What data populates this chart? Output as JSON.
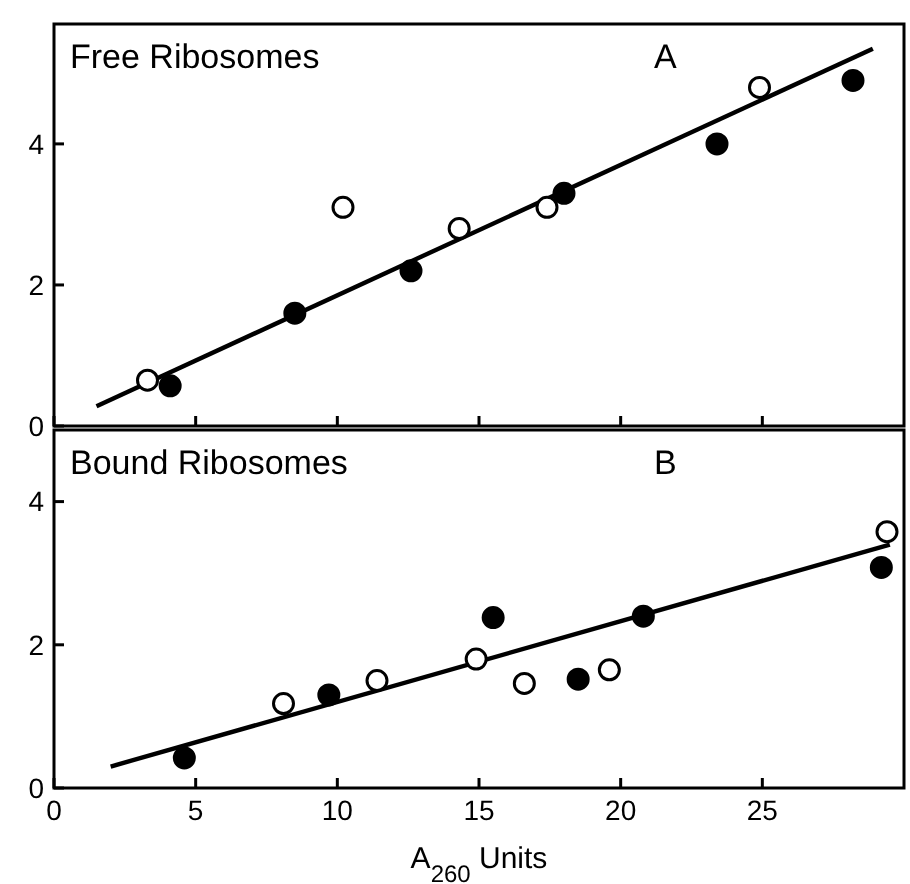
{
  "chart_data": [
    {
      "type": "scatter",
      "title": "Free Ribosomes",
      "annotations": [
        "A"
      ],
      "xlim": [
        0,
        30
      ],
      "xticks": [
        0,
        5,
        10,
        15,
        20,
        25
      ],
      "ylim": [
        0,
        5.7
      ],
      "yticks": [
        0,
        2,
        4
      ],
      "tick_labels": "y",
      "grid": false,
      "series": [
        {
          "color": "#000000",
          "marker": "circle",
          "x": [
            4.1,
            8.5,
            12.6,
            18.0,
            23.4,
            28.2
          ],
          "values": [
            0.57,
            1.6,
            2.2,
            3.3,
            4.0,
            4.9
          ]
        },
        {
          "color": "#ffffff",
          "marker": "circle",
          "x": [
            3.3,
            10.2,
            14.3,
            17.4,
            24.9
          ],
          "values": [
            0.65,
            3.1,
            2.8,
            3.1,
            4.8
          ]
        },
        {
          "type": "line",
          "marker": "none",
          "color": "#000000",
          "x": [
            1.5,
            28.9
          ],
          "values": [
            0.28,
            5.35
          ]
        }
      ]
    },
    {
      "type": "scatter",
      "title": "Bound Ribosomes",
      "annotations": [
        "B"
      ],
      "xlabel": "A$_{260}$ Units",
      "xlim": [
        0,
        30
      ],
      "xticks": [
        0,
        5,
        10,
        15,
        20,
        25
      ],
      "ylim": [
        0,
        5
      ],
      "yticks": [
        0,
        2,
        4
      ],
      "grid": false,
      "series": [
        {
          "color": "#000000",
          "marker": "circle",
          "x": [
            4.6,
            9.7,
            15.5,
            18.5,
            20.8,
            29.2
          ],
          "values": [
            0.42,
            1.3,
            2.38,
            1.52,
            2.4,
            3.08
          ]
        },
        {
          "color": "#ffffff",
          "marker": "circle",
          "x": [
            8.1,
            11.4,
            14.9,
            16.6,
            19.6,
            29.4
          ],
          "values": [
            1.18,
            1.5,
            1.8,
            1.46,
            1.65,
            3.58
          ]
        },
        {
          "type": "line",
          "marker": "none",
          "color": "#000000",
          "x": [
            2.0,
            29.5
          ],
          "values": [
            0.3,
            3.4
          ]
        }
      ]
    }
  ]
}
